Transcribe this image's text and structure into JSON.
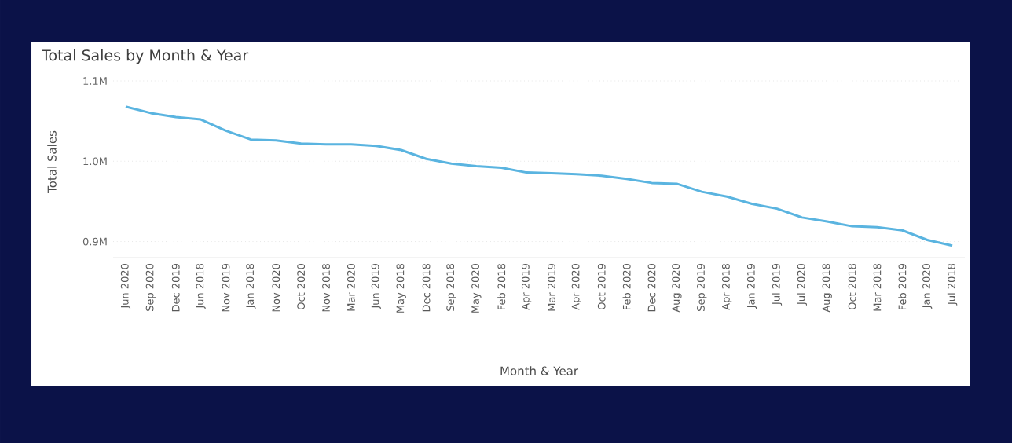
{
  "chart_data": {
    "type": "line",
    "title": "Total Sales by Month & Year",
    "xlabel": "Month & Year",
    "ylabel": "Total Sales",
    "categories": [
      "Jun 2020",
      "Sep 2020",
      "Dec 2019",
      "Jun 2018",
      "Nov 2019",
      "Jan 2018",
      "Nov 2020",
      "Oct 2020",
      "Nov 2018",
      "Mar 2020",
      "Jun 2019",
      "May 2018",
      "Dec 2018",
      "Sep 2018",
      "May 2020",
      "Feb 2018",
      "Apr 2019",
      "Mar 2019",
      "Apr 2020",
      "Oct 2019",
      "Feb 2020",
      "Dec 2020",
      "Aug 2020",
      "Sep 2019",
      "Apr 2018",
      "Jan 2019",
      "Jul 2019",
      "Jul 2020",
      "Aug 2018",
      "Oct 2018",
      "Mar 2018",
      "Feb 2019",
      "Jan 2020",
      "Jul 2018"
    ],
    "series": [
      {
        "color": "#5ab4e0",
        "values": [
          1068000,
          1060000,
          1055000,
          1052000,
          1038000,
          1027000,
          1026000,
          1022000,
          1021000,
          1021000,
          1019000,
          1014000,
          1003000,
          997000,
          994000,
          992000,
          986000,
          985000,
          984000,
          982000,
          978000,
          973000,
          972000,
          962000,
          956000,
          947000,
          941000,
          930000,
          925000,
          919000,
          918000,
          914000,
          902000,
          895000
        ]
      }
    ],
    "ylim": [
      880000,
      1100000
    ],
    "yticks": [
      {
        "value": 900000,
        "label": "0.9M"
      },
      {
        "value": 1000000,
        "label": "1.0M"
      },
      {
        "value": 1100000,
        "label": "1.1M"
      }
    ],
    "grid": "y",
    "marker": "none",
    "line_style": "solid"
  }
}
